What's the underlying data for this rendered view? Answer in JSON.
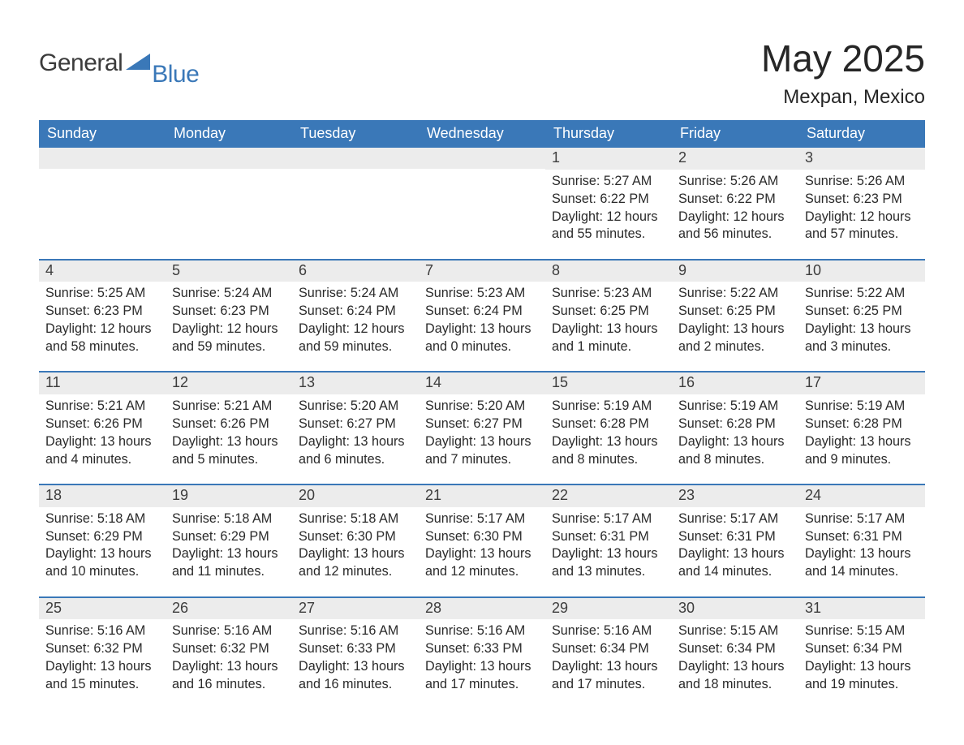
{
  "brand": {
    "part1": "General",
    "part2": "Blue"
  },
  "title": "May 2025",
  "location": "Mexpan, Mexico",
  "colors": {
    "header_bg": "#3a78b8",
    "header_text": "#ffffff",
    "daynum_bg": "#ececec",
    "daynum_text": "#3d3d3d",
    "body_text": "#2a2a2a",
    "page_bg": "#ffffff",
    "rule": "#3a78b8",
    "logo_gray": "#3b3b3b",
    "logo_blue": "#3a78b8"
  },
  "typography": {
    "title_fontsize": 46,
    "subtitle_fontsize": 24,
    "header_fontsize": 18,
    "daynum_fontsize": 18,
    "body_fontsize": 16.2,
    "font_family": "Arial"
  },
  "day_names": [
    "Sunday",
    "Monday",
    "Tuesday",
    "Wednesday",
    "Thursday",
    "Friday",
    "Saturday"
  ],
  "weeks": [
    [
      {
        "num": "",
        "sunrise": "",
        "sunset": "",
        "daylight": ""
      },
      {
        "num": "",
        "sunrise": "",
        "sunset": "",
        "daylight": ""
      },
      {
        "num": "",
        "sunrise": "",
        "sunset": "",
        "daylight": ""
      },
      {
        "num": "",
        "sunrise": "",
        "sunset": "",
        "daylight": ""
      },
      {
        "num": "1",
        "sunrise": "Sunrise: 5:27 AM",
        "sunset": "Sunset: 6:22 PM",
        "daylight": "Daylight: 12 hours and 55 minutes."
      },
      {
        "num": "2",
        "sunrise": "Sunrise: 5:26 AM",
        "sunset": "Sunset: 6:22 PM",
        "daylight": "Daylight: 12 hours and 56 minutes."
      },
      {
        "num": "3",
        "sunrise": "Sunrise: 5:26 AM",
        "sunset": "Sunset: 6:23 PM",
        "daylight": "Daylight: 12 hours and 57 minutes."
      }
    ],
    [
      {
        "num": "4",
        "sunrise": "Sunrise: 5:25 AM",
        "sunset": "Sunset: 6:23 PM",
        "daylight": "Daylight: 12 hours and 58 minutes."
      },
      {
        "num": "5",
        "sunrise": "Sunrise: 5:24 AM",
        "sunset": "Sunset: 6:23 PM",
        "daylight": "Daylight: 12 hours and 59 minutes."
      },
      {
        "num": "6",
        "sunrise": "Sunrise: 5:24 AM",
        "sunset": "Sunset: 6:24 PM",
        "daylight": "Daylight: 12 hours and 59 minutes."
      },
      {
        "num": "7",
        "sunrise": "Sunrise: 5:23 AM",
        "sunset": "Sunset: 6:24 PM",
        "daylight": "Daylight: 13 hours and 0 minutes."
      },
      {
        "num": "8",
        "sunrise": "Sunrise: 5:23 AM",
        "sunset": "Sunset: 6:25 PM",
        "daylight": "Daylight: 13 hours and 1 minute."
      },
      {
        "num": "9",
        "sunrise": "Sunrise: 5:22 AM",
        "sunset": "Sunset: 6:25 PM",
        "daylight": "Daylight: 13 hours and 2 minutes."
      },
      {
        "num": "10",
        "sunrise": "Sunrise: 5:22 AM",
        "sunset": "Sunset: 6:25 PM",
        "daylight": "Daylight: 13 hours and 3 minutes."
      }
    ],
    [
      {
        "num": "11",
        "sunrise": "Sunrise: 5:21 AM",
        "sunset": "Sunset: 6:26 PM",
        "daylight": "Daylight: 13 hours and 4 minutes."
      },
      {
        "num": "12",
        "sunrise": "Sunrise: 5:21 AM",
        "sunset": "Sunset: 6:26 PM",
        "daylight": "Daylight: 13 hours and 5 minutes."
      },
      {
        "num": "13",
        "sunrise": "Sunrise: 5:20 AM",
        "sunset": "Sunset: 6:27 PM",
        "daylight": "Daylight: 13 hours and 6 minutes."
      },
      {
        "num": "14",
        "sunrise": "Sunrise: 5:20 AM",
        "sunset": "Sunset: 6:27 PM",
        "daylight": "Daylight: 13 hours and 7 minutes."
      },
      {
        "num": "15",
        "sunrise": "Sunrise: 5:19 AM",
        "sunset": "Sunset: 6:28 PM",
        "daylight": "Daylight: 13 hours and 8 minutes."
      },
      {
        "num": "16",
        "sunrise": "Sunrise: 5:19 AM",
        "sunset": "Sunset: 6:28 PM",
        "daylight": "Daylight: 13 hours and 8 minutes."
      },
      {
        "num": "17",
        "sunrise": "Sunrise: 5:19 AM",
        "sunset": "Sunset: 6:28 PM",
        "daylight": "Daylight: 13 hours and 9 minutes."
      }
    ],
    [
      {
        "num": "18",
        "sunrise": "Sunrise: 5:18 AM",
        "sunset": "Sunset: 6:29 PM",
        "daylight": "Daylight: 13 hours and 10 minutes."
      },
      {
        "num": "19",
        "sunrise": "Sunrise: 5:18 AM",
        "sunset": "Sunset: 6:29 PM",
        "daylight": "Daylight: 13 hours and 11 minutes."
      },
      {
        "num": "20",
        "sunrise": "Sunrise: 5:18 AM",
        "sunset": "Sunset: 6:30 PM",
        "daylight": "Daylight: 13 hours and 12 minutes."
      },
      {
        "num": "21",
        "sunrise": "Sunrise: 5:17 AM",
        "sunset": "Sunset: 6:30 PM",
        "daylight": "Daylight: 13 hours and 12 minutes."
      },
      {
        "num": "22",
        "sunrise": "Sunrise: 5:17 AM",
        "sunset": "Sunset: 6:31 PM",
        "daylight": "Daylight: 13 hours and 13 minutes."
      },
      {
        "num": "23",
        "sunrise": "Sunrise: 5:17 AM",
        "sunset": "Sunset: 6:31 PM",
        "daylight": "Daylight: 13 hours and 14 minutes."
      },
      {
        "num": "24",
        "sunrise": "Sunrise: 5:17 AM",
        "sunset": "Sunset: 6:31 PM",
        "daylight": "Daylight: 13 hours and 14 minutes."
      }
    ],
    [
      {
        "num": "25",
        "sunrise": "Sunrise: 5:16 AM",
        "sunset": "Sunset: 6:32 PM",
        "daylight": "Daylight: 13 hours and 15 minutes."
      },
      {
        "num": "26",
        "sunrise": "Sunrise: 5:16 AM",
        "sunset": "Sunset: 6:32 PM",
        "daylight": "Daylight: 13 hours and 16 minutes."
      },
      {
        "num": "27",
        "sunrise": "Sunrise: 5:16 AM",
        "sunset": "Sunset: 6:33 PM",
        "daylight": "Daylight: 13 hours and 16 minutes."
      },
      {
        "num": "28",
        "sunrise": "Sunrise: 5:16 AM",
        "sunset": "Sunset: 6:33 PM",
        "daylight": "Daylight: 13 hours and 17 minutes."
      },
      {
        "num": "29",
        "sunrise": "Sunrise: 5:16 AM",
        "sunset": "Sunset: 6:34 PM",
        "daylight": "Daylight: 13 hours and 17 minutes."
      },
      {
        "num": "30",
        "sunrise": "Sunrise: 5:15 AM",
        "sunset": "Sunset: 6:34 PM",
        "daylight": "Daylight: 13 hours and 18 minutes."
      },
      {
        "num": "31",
        "sunrise": "Sunrise: 5:15 AM",
        "sunset": "Sunset: 6:34 PM",
        "daylight": "Daylight: 13 hours and 19 minutes."
      }
    ]
  ]
}
